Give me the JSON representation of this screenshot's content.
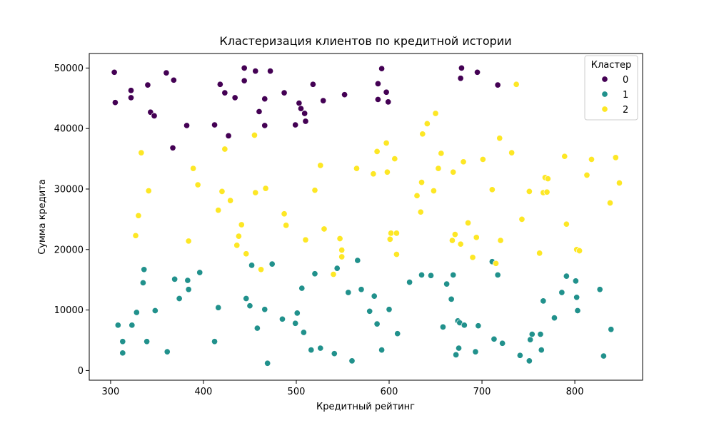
{
  "chart_data": {
    "type": "scatter",
    "title": "Кластеризация клиентов по кредитной истории",
    "xlabel": "Кредитный рейтинг",
    "ylabel": "Сумма кредита",
    "xlim": [
      277,
      873
    ],
    "ylim": [
      -1600,
      52400
    ],
    "xticks": [
      300,
      400,
      500,
      600,
      700,
      800
    ],
    "yticks": [
      0,
      10000,
      20000,
      30000,
      40000,
      50000
    ],
    "grid": false,
    "legend": {
      "title": "Кластер",
      "placement": "top-right"
    },
    "series": [
      {
        "name": "0",
        "color": "#440154",
        "points": [
          [
            304,
            49300
          ],
          [
            305,
            44300
          ],
          [
            322,
            46300
          ],
          [
            322,
            45100
          ],
          [
            340,
            47200
          ],
          [
            343,
            42700
          ],
          [
            347,
            42100
          ],
          [
            360,
            49200
          ],
          [
            367,
            36800
          ],
          [
            368,
            48000
          ],
          [
            382,
            40500
          ],
          [
            412,
            40600
          ],
          [
            418,
            47300
          ],
          [
            423,
            45900
          ],
          [
            427,
            38800
          ],
          [
            434,
            45100
          ],
          [
            444,
            50000
          ],
          [
            444,
            47900
          ],
          [
            456,
            49500
          ],
          [
            460,
            42800
          ],
          [
            466,
            40500
          ],
          [
            466,
            44900
          ],
          [
            472,
            49500
          ],
          [
            487,
            45900
          ],
          [
            499,
            40600
          ],
          [
            503,
            44200
          ],
          [
            505,
            43300
          ],
          [
            509,
            42500
          ],
          [
            510,
            41200
          ],
          [
            518,
            47300
          ],
          [
            529,
            44600
          ],
          [
            552,
            45600
          ],
          [
            588,
            44800
          ],
          [
            588,
            47400
          ],
          [
            592,
            49900
          ],
          [
            597,
            46000
          ],
          [
            599,
            44400
          ],
          [
            677,
            48300
          ],
          [
            678,
            50000
          ],
          [
            695,
            49300
          ],
          [
            717,
            47200
          ]
        ]
      },
      {
        "name": "1",
        "color": "#21918c",
        "points": [
          [
            308,
            7500
          ],
          [
            313,
            4800
          ],
          [
            313,
            2900
          ],
          [
            323,
            7500
          ],
          [
            328,
            9600
          ],
          [
            335,
            14500
          ],
          [
            336,
            16700
          ],
          [
            339,
            4800
          ],
          [
            348,
            9900
          ],
          [
            361,
            3100
          ],
          [
            369,
            15100
          ],
          [
            374,
            11900
          ],
          [
            383,
            14900
          ],
          [
            384,
            13400
          ],
          [
            396,
            16200
          ],
          [
            412,
            4800
          ],
          [
            416,
            10400
          ],
          [
            446,
            11900
          ],
          [
            450,
            10700
          ],
          [
            452,
            17400
          ],
          [
            458,
            7000
          ],
          [
            466,
            10100
          ],
          [
            469,
            1200
          ],
          [
            474,
            17600
          ],
          [
            485,
            8500
          ],
          [
            499,
            7800
          ],
          [
            501,
            9500
          ],
          [
            506,
            13600
          ],
          [
            508,
            6300
          ],
          [
            516,
            3400
          ],
          [
            520,
            16000
          ],
          [
            526,
            3700
          ],
          [
            541,
            2800
          ],
          [
            544,
            16900
          ],
          [
            556,
            12900
          ],
          [
            560,
            1600
          ],
          [
            566,
            18200
          ],
          [
            570,
            13400
          ],
          [
            579,
            9800
          ],
          [
            584,
            12300
          ],
          [
            587,
            7700
          ],
          [
            592,
            3400
          ],
          [
            600,
            10100
          ],
          [
            609,
            6100
          ],
          [
            622,
            14600
          ],
          [
            635,
            15800
          ],
          [
            645,
            15700
          ],
          [
            658,
            7200
          ],
          [
            662,
            14300
          ],
          [
            667,
            11800
          ],
          [
            669,
            15800
          ],
          [
            672,
            2600
          ],
          [
            674,
            8200
          ],
          [
            675,
            3700
          ],
          [
            676,
            7900
          ],
          [
            681,
            7500
          ],
          [
            693,
            3100
          ],
          [
            696,
            7400
          ],
          [
            711,
            18000
          ],
          [
            713,
            5200
          ],
          [
            717,
            15800
          ],
          [
            722,
            4500
          ],
          [
            741,
            2500
          ],
          [
            751,
            1600
          ],
          [
            752,
            5100
          ],
          [
            754,
            6000
          ],
          [
            763,
            6000
          ],
          [
            764,
            3400
          ],
          [
            766,
            11500
          ],
          [
            778,
            8700
          ],
          [
            786,
            12900
          ],
          [
            791,
            15600
          ],
          [
            801,
            14800
          ],
          [
            802,
            12100
          ],
          [
            803,
            9900
          ],
          [
            827,
            13400
          ],
          [
            831,
            2400
          ],
          [
            839,
            6800
          ]
        ]
      },
      {
        "name": "2",
        "color": "#fde725",
        "points": [
          [
            327,
            22300
          ],
          [
            330,
            25600
          ],
          [
            333,
            36000
          ],
          [
            341,
            29700
          ],
          [
            384,
            21400
          ],
          [
            389,
            33400
          ],
          [
            394,
            30700
          ],
          [
            416,
            26500
          ],
          [
            420,
            29600
          ],
          [
            423,
            36600
          ],
          [
            429,
            28100
          ],
          [
            436,
            20700
          ],
          [
            438,
            22200
          ],
          [
            441,
            24100
          ],
          [
            446,
            19300
          ],
          [
            455,
            38900
          ],
          [
            456,
            29400
          ],
          [
            462,
            16700
          ],
          [
            467,
            30100
          ],
          [
            487,
            25900
          ],
          [
            489,
            24000
          ],
          [
            510,
            21600
          ],
          [
            520,
            29800
          ],
          [
            526,
            33900
          ],
          [
            530,
            23400
          ],
          [
            540,
            15900
          ],
          [
            547,
            21800
          ],
          [
            549,
            19900
          ],
          [
            549,
            18800
          ],
          [
            565,
            33400
          ],
          [
            583,
            32500
          ],
          [
            587,
            36200
          ],
          [
            597,
            37600
          ],
          [
            598,
            32800
          ],
          [
            601,
            21700
          ],
          [
            602,
            22700
          ],
          [
            606,
            35000
          ],
          [
            608,
            22700
          ],
          [
            608,
            19200
          ],
          [
            630,
            28900
          ],
          [
            634,
            26200
          ],
          [
            635,
            31100
          ],
          [
            636,
            39100
          ],
          [
            641,
            40800
          ],
          [
            648,
            29700
          ],
          [
            650,
            42500
          ],
          [
            653,
            33400
          ],
          [
            656,
            35900
          ],
          [
            668,
            21500
          ],
          [
            669,
            32800
          ],
          [
            671,
            22500
          ],
          [
            677,
            20900
          ],
          [
            680,
            34500
          ],
          [
            685,
            24400
          ],
          [
            690,
            18700
          ],
          [
            694,
            22000
          ],
          [
            701,
            34900
          ],
          [
            711,
            29900
          ],
          [
            715,
            17700
          ],
          [
            719,
            38400
          ],
          [
            720,
            21500
          ],
          [
            732,
            36000
          ],
          [
            737,
            47300
          ],
          [
            743,
            25000
          ],
          [
            751,
            29600
          ],
          [
            762,
            19400
          ],
          [
            766,
            29400
          ],
          [
            768,
            31900
          ],
          [
            770,
            29500
          ],
          [
            771,
            31700
          ],
          [
            789,
            35400
          ],
          [
            791,
            24200
          ],
          [
            802,
            20000
          ],
          [
            805,
            19800
          ],
          [
            813,
            32300
          ],
          [
            818,
            34900
          ],
          [
            838,
            27700
          ],
          [
            844,
            35200
          ],
          [
            848,
            31000
          ]
        ]
      }
    ]
  }
}
